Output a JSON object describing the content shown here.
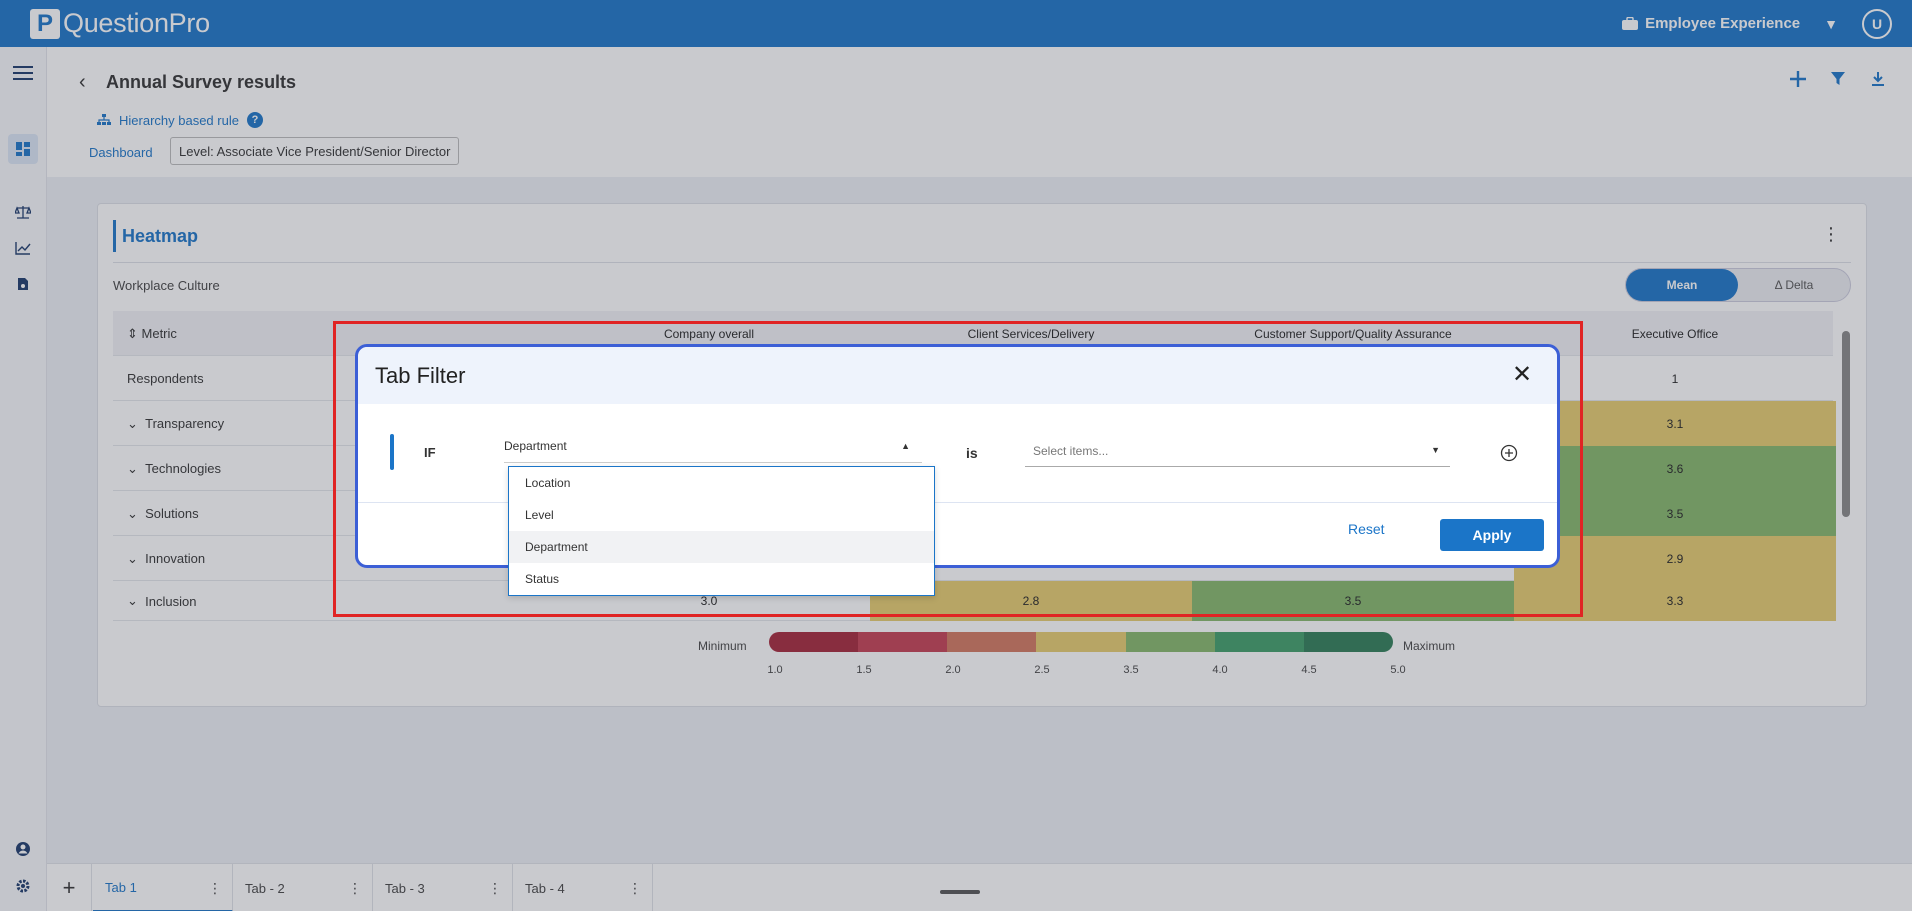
{
  "topbar": {
    "logo_letter": "P",
    "logo_text": "QuestionPro",
    "product_label": "Employee Experience",
    "user_initial": "U"
  },
  "page": {
    "title": "Annual Survey results",
    "hierarchy_rule": "Hierarchy based rule",
    "help": "?",
    "dashboard_link": "Dashboard",
    "level_chip": "Level: Associate Vice President/Senior Director"
  },
  "heatmap": {
    "title": "Heatmap",
    "subtitle": "Workplace Culture",
    "toggle": {
      "mean": "Mean",
      "delta": "Δ Delta"
    },
    "metric_header": "Metric",
    "columns": [
      "Company overall",
      "Client Services/Delivery",
      "Customer Support/Quality Assurance",
      "Executive Office"
    ],
    "rows": [
      {
        "label": "Respondents",
        "values": [
          "",
          "",
          "",
          "1"
        ]
      },
      {
        "label": "Transparency",
        "values": [
          "",
          "",
          "",
          "3.1"
        ]
      },
      {
        "label": "Technologies",
        "values": [
          "",
          "",
          "",
          "3.6"
        ]
      },
      {
        "label": "Solutions",
        "values": [
          "",
          "",
          "",
          "3.5"
        ]
      },
      {
        "label": "Innovation",
        "values": [
          "",
          "",
          "",
          "2.9"
        ]
      },
      {
        "label": "Inclusion",
        "values": [
          "3.0",
          "2.8",
          "3.5",
          "3.3"
        ]
      }
    ],
    "legend": {
      "min_label": "Minimum",
      "max_label": "Maximum",
      "ticks": [
        "1.0",
        "1.5",
        "2.0",
        "2.5",
        "3.5",
        "4.0",
        "4.5",
        "5.0"
      ],
      "colors": [
        "#a6263a",
        "#c53f52",
        "#d3785f",
        "#e6cc6e",
        "#86b86a",
        "#3f9e68",
        "#2f7d57"
      ]
    }
  },
  "modal": {
    "title": "Tab Filter",
    "if_label": "IF",
    "field_value": "Department",
    "is_label": "is",
    "value_placeholder": "Select items...",
    "reset_label": "Reset",
    "apply_label": "Apply",
    "options": [
      "Location",
      "Level",
      "Department",
      "Status"
    ],
    "selected_option": "Department"
  },
  "tabs": [
    {
      "label": "Tab 1",
      "active": true
    },
    {
      "label": "Tab - 2",
      "active": false
    },
    {
      "label": "Tab - 3",
      "active": false
    },
    {
      "label": "Tab - 4",
      "active": false
    }
  ],
  "colors": {
    "brand": "#1b75c8",
    "highlight_box": "#e02424",
    "modal_border": "#3c5fd6"
  }
}
